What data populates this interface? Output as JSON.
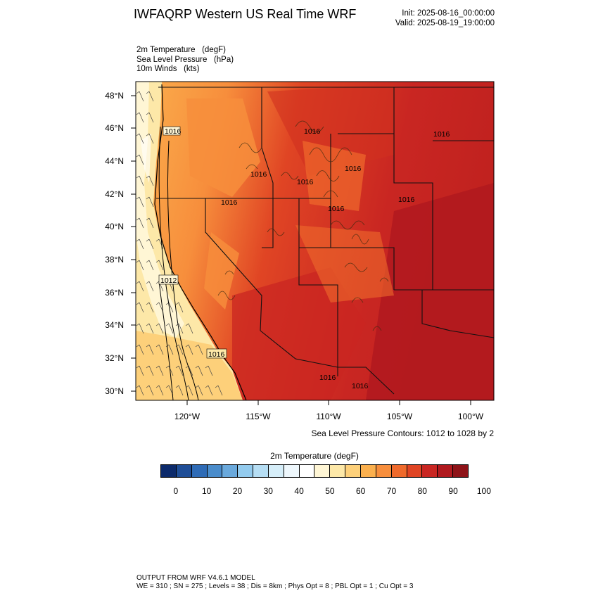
{
  "header": {
    "title": "IWFAQRP Western US Real Time WRF",
    "init": "Init: 2025-08-16_00:00:00",
    "valid": "Valid: 2025-08-19_19:00:00"
  },
  "fields": {
    "line1": "2m Temperature   (degF)",
    "line2": "Sea Level Pressure   (hPa)",
    "line3": "10m Winds   (kts)"
  },
  "map": {
    "lat_labels": [
      "48°N",
      "46°N",
      "44°N",
      "42°N",
      "40°N",
      "38°N",
      "36°N",
      "34°N",
      "32°N",
      "30°N"
    ],
    "lon_labels": [
      "120°W",
      "115°W",
      "110°W",
      "105°W",
      "100°W"
    ],
    "contour_labels": [
      "1016",
      "1016",
      "1016",
      "1016",
      "1016",
      "1016",
      "1016",
      "1016",
      "1016",
      "1016",
      "1016",
      "1016",
      "1012"
    ],
    "slp_note": "Sea Level Pressure Contours: 1012 to 1028 by 2"
  },
  "legend": {
    "title": "2m Temperature  (degF)",
    "ticks": [
      "0",
      "10",
      "20",
      "30",
      "40",
      "50",
      "60",
      "70",
      "80",
      "90",
      "100"
    ],
    "colors": [
      "#0c2a6b",
      "#1f4e97",
      "#2e6bb6",
      "#4a8ccb",
      "#6aa9dc",
      "#93cbee",
      "#b6def4",
      "#d6eef9",
      "#eef7fc",
      "#ffffff",
      "#fff6d5",
      "#fde8a8",
      "#fdd07a",
      "#fbb04e",
      "#f78e3c",
      "#ef6a2c",
      "#e04524",
      "#c92622",
      "#b0191e",
      "#8e1318"
    ]
  },
  "footer": {
    "line1": "OUTPUT FROM WRF V4.6.1 MODEL",
    "line2": "WE = 310 ; SN = 275 ; Levels = 38 ; Dis = 8km ; Phys Opt = 8 ; PBL Opt = 1 ; Cu Opt = 3"
  }
}
